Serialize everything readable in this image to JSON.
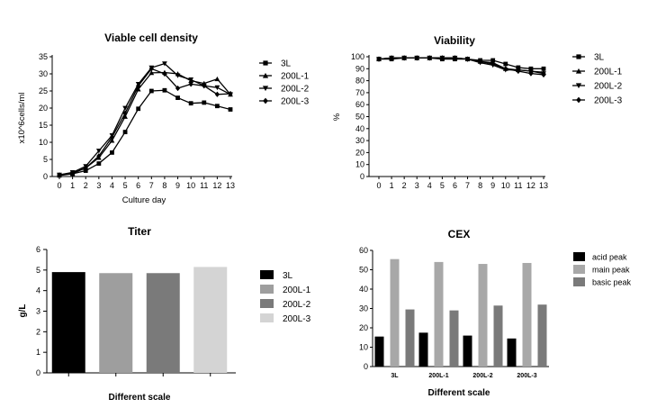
{
  "chart_data": [
    {
      "id": "vcd",
      "type": "line",
      "title": "Viable cell density",
      "xlabel": "Culture day",
      "ylabel": "x10^6cells/ml",
      "x": [
        0,
        1,
        2,
        3,
        4,
        5,
        6,
        7,
        8,
        9,
        10,
        11,
        12,
        13
      ],
      "xlim": [
        0,
        13
      ],
      "ylim": [
        0,
        35
      ],
      "yticks": [
        0,
        5,
        10,
        15,
        20,
        25,
        30,
        35
      ],
      "legend_position": "right",
      "series": [
        {
          "name": "3L",
          "marker": "square",
          "values": [
            0.3,
            0.8,
            1.7,
            3.8,
            7.0,
            13.0,
            19.8,
            25.0,
            25.2,
            23.0,
            21.4,
            21.6,
            20.6,
            19.6
          ]
        },
        {
          "name": "200L-1",
          "marker": "triangle-up",
          "values": [
            0.5,
            1.0,
            2.5,
            5.5,
            10.5,
            17.5,
            25.5,
            30.3,
            30.4,
            30.0,
            28.0,
            27.2,
            28.5,
            24.0
          ]
        },
        {
          "name": "200L-2",
          "marker": "triangle-down",
          "values": [
            0.5,
            1.2,
            3.0,
            7.5,
            12.0,
            20.0,
            27.0,
            31.8,
            33.0,
            29.5,
            28.3,
            26.5,
            26.0,
            24.0
          ]
        },
        {
          "name": "200L-3",
          "marker": "diamond",
          "values": [
            0.4,
            0.9,
            2.5,
            6.0,
            11.5,
            18.5,
            26.5,
            31.5,
            30.0,
            25.8,
            27.0,
            26.5,
            24.0,
            24.2
          ]
        }
      ]
    },
    {
      "id": "viability",
      "type": "line",
      "title": "Viability",
      "xlabel": "",
      "ylabel": "%",
      "x": [
        0,
        1,
        2,
        3,
        4,
        5,
        6,
        7,
        8,
        9,
        10,
        11,
        12,
        13
      ],
      "xlim": [
        0,
        13
      ],
      "ylim": [
        0,
        100
      ],
      "yticks": [
        0,
        10,
        20,
        30,
        40,
        50,
        60,
        70,
        80,
        90,
        100
      ],
      "legend_position": "right",
      "series": [
        {
          "name": "3L",
          "marker": "square",
          "values": [
            98,
            98,
            99,
            99,
            99,
            98,
            98,
            98,
            97,
            97,
            94,
            91,
            90,
            90
          ]
        },
        {
          "name": "200L-1",
          "marker": "triangle-up",
          "values": [
            98,
            99,
            99,
            99,
            99,
            99,
            99,
            98,
            96,
            95,
            90,
            89,
            88,
            87
          ]
        },
        {
          "name": "200L-2",
          "marker": "triangle-down",
          "values": [
            98,
            99,
            99,
            99,
            99,
            99,
            99,
            98,
            95,
            93,
            89,
            89,
            88,
            86
          ]
        },
        {
          "name": "200L-3",
          "marker": "diamond",
          "values": [
            98,
            99,
            99,
            99,
            99,
            99,
            99,
            98,
            96,
            94,
            90,
            88,
            86,
            85
          ]
        }
      ]
    },
    {
      "id": "titer",
      "type": "bar",
      "title": "Titer",
      "xlabel": "Different scale",
      "ylabel": "g/L",
      "categories": [
        "3L",
        "200L-1",
        "200L-2",
        "200L-3"
      ],
      "values": [
        4.9,
        4.85,
        4.85,
        5.15
      ],
      "colors": [
        "#000000",
        "#9e9e9e",
        "#7a7a7a",
        "#d4d4d4"
      ],
      "ylim": [
        0,
        6
      ],
      "yticks": [
        0,
        1,
        2,
        3,
        4,
        5,
        6
      ],
      "legend_position": "right"
    },
    {
      "id": "cex",
      "type": "bar",
      "title": "CEX",
      "xlabel": "Different scale",
      "ylabel": "",
      "categories": [
        "3L",
        "200L-1",
        "200L-2",
        "200L-3"
      ],
      "ylim": [
        0,
        60
      ],
      "yticks": [
        0,
        10,
        20,
        30,
        40,
        50,
        60
      ],
      "legend_position": "right",
      "series": [
        {
          "name": "acid peak",
          "color": "#000000",
          "values": [
            15.5,
            17.5,
            16.0,
            14.5
          ]
        },
        {
          "name": "main peak",
          "color": "#a8a8a8",
          "values": [
            55.5,
            54.0,
            53.0,
            53.5
          ]
        },
        {
          "name": "basic peak",
          "color": "#7a7a7a",
          "values": [
            29.5,
            29.0,
            31.5,
            32.0
          ]
        }
      ]
    }
  ]
}
